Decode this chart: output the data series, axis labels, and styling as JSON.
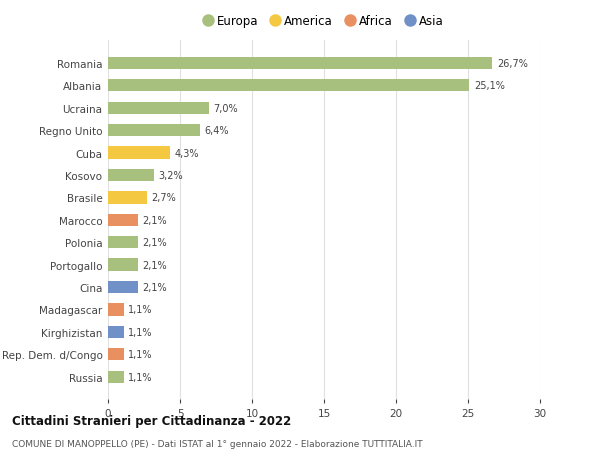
{
  "countries": [
    "Romania",
    "Albania",
    "Ucraina",
    "Regno Unito",
    "Cuba",
    "Kosovo",
    "Brasile",
    "Marocco",
    "Polonia",
    "Portogallo",
    "Cina",
    "Madagascar",
    "Kirghizistan",
    "Rep. Dem. d/Congo",
    "Russia"
  ],
  "values": [
    26.7,
    25.1,
    7.0,
    6.4,
    4.3,
    3.2,
    2.7,
    2.1,
    2.1,
    2.1,
    2.1,
    1.1,
    1.1,
    1.1,
    1.1
  ],
  "labels": [
    "26,7%",
    "25,1%",
    "7,0%",
    "6,4%",
    "4,3%",
    "3,2%",
    "2,7%",
    "2,1%",
    "2,1%",
    "2,1%",
    "2,1%",
    "1,1%",
    "1,1%",
    "1,1%",
    "1,1%"
  ],
  "continents": [
    "Europa",
    "Europa",
    "Europa",
    "Europa",
    "America",
    "Europa",
    "America",
    "Africa",
    "Europa",
    "Europa",
    "Asia",
    "Africa",
    "Asia",
    "Africa",
    "Europa"
  ],
  "continent_colors": {
    "Europa": "#a8c07e",
    "America": "#f5c842",
    "Africa": "#e89060",
    "Asia": "#7090c8"
  },
  "legend_order": [
    "Europa",
    "America",
    "Africa",
    "Asia"
  ],
  "xlim": [
    0,
    30
  ],
  "xticks": [
    0,
    5,
    10,
    15,
    20,
    25,
    30
  ],
  "title": "Cittadini Stranieri per Cittadinanza - 2022",
  "subtitle": "COMUNE DI MANOPPELLO (PE) - Dati ISTAT al 1° gennaio 2022 - Elaborazione TUTTITALIA.IT",
  "background_color": "#ffffff",
  "grid_color": "#e0e0e0",
  "bar_height": 0.55
}
